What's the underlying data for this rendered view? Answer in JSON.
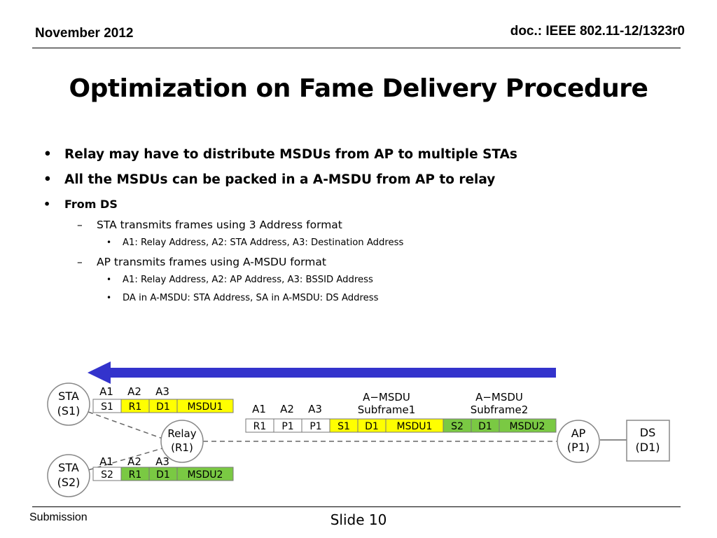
{
  "header": {
    "date": "November 2012",
    "doc_id": "doc.: IEEE 802.11-12/1323r0"
  },
  "title": "Optimization on Fame Delivery Procedure",
  "bullets": {
    "b1": "Relay may have to distribute MSDUs from AP to multiple STAs",
    "b2": "All the MSDUs can be packed in a A-MSDU from AP to relay",
    "b3": "From DS",
    "sub1": "STA transmits frames using 3 Address format",
    "sub1_item1": "A1: Relay Address, A2: STA Address, A3: Destination Address",
    "sub2": "AP transmits frames using A-MSDU format",
    "sub2_item1": "A1: Relay Address, A2: AP Address, A3: BSSID Address",
    "sub2_item2": "DA in A-MSDU: STA Address, SA in A-MSDU: DS Address"
  },
  "diagram": {
    "colors": {
      "arrow": "#3333cc",
      "yellow": "#ffff00",
      "green": "#7ac943",
      "white": "#ffffff"
    },
    "nodes": {
      "sta1": [
        "STA",
        "(S1)"
      ],
      "sta2": [
        "STA",
        "(S2)"
      ],
      "relay": [
        "Relay",
        "(R1)"
      ],
      "ap": [
        "AP",
        "(P1)"
      ],
      "ds": [
        "DS",
        "(D1)"
      ]
    },
    "frame1": {
      "headers": [
        "A1",
        "A2",
        "A3"
      ],
      "cells": [
        "S1",
        "R1",
        "D1",
        "MSDU1"
      ]
    },
    "frame2": {
      "headers": [
        "A1",
        "A2",
        "A3"
      ],
      "cells": [
        "S2",
        "R1",
        "D1",
        "MSDU2"
      ]
    },
    "amsdu_frame": {
      "headers": [
        "A1",
        "A2",
        "A3"
      ],
      "subframe1_label": [
        "A−MSDU",
        "Subframe1"
      ],
      "subframe2_label": [
        "A−MSDU",
        "Subframe2"
      ],
      "cells": [
        "R1",
        "P1",
        "P1",
        "S1",
        "D1",
        "MSDU1",
        "S2",
        "D1",
        "MSDU2"
      ]
    }
  },
  "footer": {
    "left": "Submission",
    "center": "Slide 10"
  }
}
